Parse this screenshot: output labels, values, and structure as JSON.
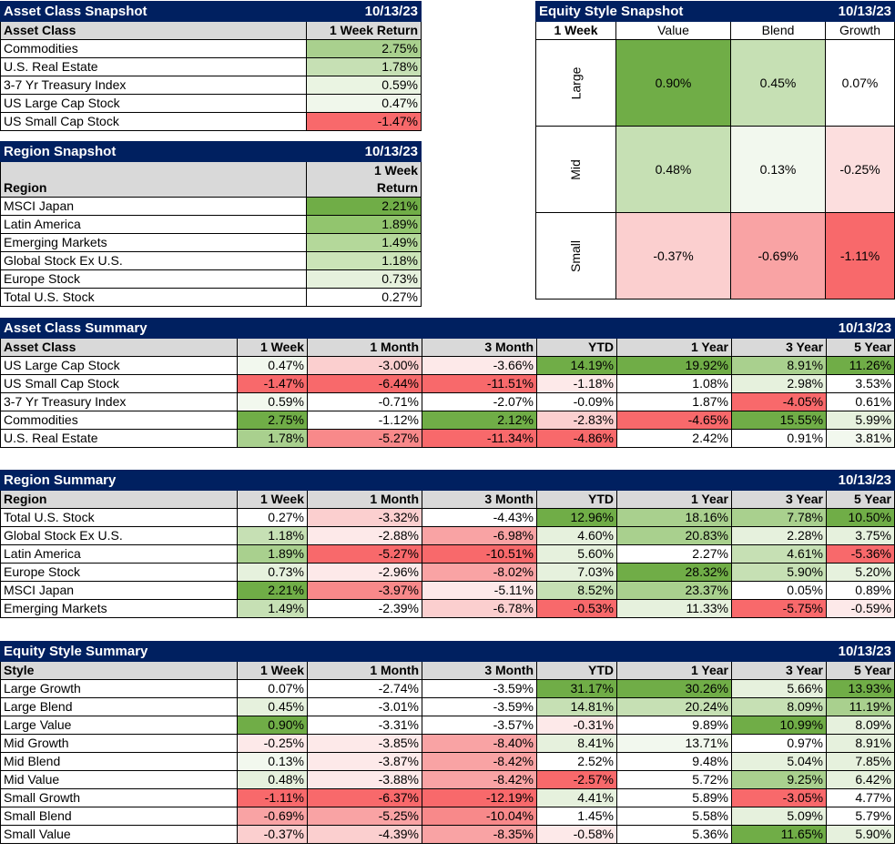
{
  "colors": {
    "header_bg": "#002060",
    "subheader_bg": "#d9d9d9"
  },
  "asset_class_snapshot": {
    "title": "Asset Class Snapshot",
    "date": "10/13/23",
    "col_label": "Asset Class",
    "col_return": "1 Week Return",
    "rows": [
      {
        "name": "Commodities",
        "value": "2.75%",
        "color": "#a9d08e"
      },
      {
        "name": "U.S. Real Estate",
        "value": "1.78%",
        "color": "#c6e0b4"
      },
      {
        "name": "3-7 Yr Treasury Index",
        "value": "0.59%",
        "color": "#eaf4e2"
      },
      {
        "name": "US Large Cap Stock",
        "value": "0.47%",
        "color": "#f0f7eb"
      },
      {
        "name": "US Small Cap Stock",
        "value": "-1.47%",
        "color": "#f8696b"
      }
    ]
  },
  "region_snapshot": {
    "title": "Region Snapshot",
    "date": "10/13/23",
    "col_label": "Region",
    "col_return_line1": "1 Week",
    "col_return_line2": "Return",
    "rows": [
      {
        "name": "MSCI Japan",
        "value": "2.21%",
        "color": "#70ad47"
      },
      {
        "name": "Latin America",
        "value": "1.89%",
        "color": "#92c56e"
      },
      {
        "name": "Emerging Markets",
        "value": "1.49%",
        "color": "#b4d89a"
      },
      {
        "name": "Global Stock Ex U.S.",
        "value": "1.18%",
        "color": "#cbe4b8"
      },
      {
        "name": "Europe Stock",
        "value": "0.73%",
        "color": "#e6f1dd"
      },
      {
        "name": "Total U.S. Stock",
        "value": "0.27%",
        "color": "#ffffff"
      }
    ]
  },
  "equity_style_snapshot": {
    "title": "Equity Style Snapshot",
    "date": "10/13/23",
    "corner": "1 Week",
    "cols": [
      "Value",
      "Blend",
      "Growth"
    ],
    "rows": [
      {
        "label": "Large",
        "cells": [
          {
            "value": "0.90%",
            "color": "#70ad47"
          },
          {
            "value": "0.45%",
            "color": "#c6e0b4"
          },
          {
            "value": "0.07%",
            "color": "#ffffff"
          }
        ]
      },
      {
        "label": "Mid",
        "cells": [
          {
            "value": "0.48%",
            "color": "#c6e0b4"
          },
          {
            "value": "0.13%",
            "color": "#f2f8ee"
          },
          {
            "value": "-0.25%",
            "color": "#fcdede"
          }
        ]
      },
      {
        "label": "Small",
        "cells": [
          {
            "value": "-0.37%",
            "color": "#fbcfcf"
          },
          {
            "value": "-0.69%",
            "color": "#f9a3a4"
          },
          {
            "value": "-1.11%",
            "color": "#f8696b"
          }
        ]
      }
    ]
  },
  "asset_class_summary": {
    "title": "Asset Class Summary",
    "date": "10/13/23",
    "headers": [
      "Asset Class",
      "1 Week",
      "1 Month",
      "3 Month",
      "YTD",
      "1 Year",
      "3 Year",
      "5 Year"
    ],
    "rows": [
      {
        "name": "US Large Cap Stock",
        "cells": [
          {
            "v": "0.47%",
            "c": "#f2f8ee"
          },
          {
            "v": "-3.00%",
            "c": "#fbcfcf"
          },
          {
            "v": "-3.66%",
            "c": "#fde9e9"
          },
          {
            "v": "14.19%",
            "c": "#70ad47"
          },
          {
            "v": "19.92%",
            "c": "#70ad47"
          },
          {
            "v": "8.91%",
            "c": "#a9d08e"
          },
          {
            "v": "11.26%",
            "c": "#70ad47"
          }
        ]
      },
      {
        "name": "US Small Cap Stock",
        "cells": [
          {
            "v": "-1.47%",
            "c": "#f8696b"
          },
          {
            "v": "-6.44%",
            "c": "#f8696b"
          },
          {
            "v": "-11.51%",
            "c": "#f8696b"
          },
          {
            "v": "-1.18%",
            "c": "#fde9e9"
          },
          {
            "v": "1.08%",
            "c": "#ffffff"
          },
          {
            "v": "2.98%",
            "c": "#e6f1dd"
          },
          {
            "v": "3.53%",
            "c": "#ffffff"
          }
        ]
      },
      {
        "name": "3-7 Yr Treasury Index",
        "cells": [
          {
            "v": "0.59%",
            "c": "#f2f8ee"
          },
          {
            "v": "-0.71%",
            "c": "#ffffff"
          },
          {
            "v": "-2.07%",
            "c": "#ffffff"
          },
          {
            "v": "-0.09%",
            "c": "#ffffff"
          },
          {
            "v": "1.87%",
            "c": "#ffffff"
          },
          {
            "v": "-4.05%",
            "c": "#f8696b"
          },
          {
            "v": "0.61%",
            "c": "#ffffff"
          }
        ]
      },
      {
        "name": "Commodities",
        "cells": [
          {
            "v": "2.75%",
            "c": "#70ad47"
          },
          {
            "v": "-1.12%",
            "c": "#ffffff"
          },
          {
            "v": "2.12%",
            "c": "#70ad47"
          },
          {
            "v": "-2.83%",
            "c": "#fbcfcf"
          },
          {
            "v": "-4.65%",
            "c": "#f8696b"
          },
          {
            "v": "15.55%",
            "c": "#70ad47"
          },
          {
            "v": "5.99%",
            "c": "#e6f1dd"
          }
        ]
      },
      {
        "name": "U.S. Real Estate",
        "cells": [
          {
            "v": "1.78%",
            "c": "#a9d08e"
          },
          {
            "v": "-5.27%",
            "c": "#f8898a"
          },
          {
            "v": "-11.34%",
            "c": "#f8696b"
          },
          {
            "v": "-4.86%",
            "c": "#f8696b"
          },
          {
            "v": "2.42%",
            "c": "#ffffff"
          },
          {
            "v": "0.91%",
            "c": "#ffffff"
          },
          {
            "v": "3.81%",
            "c": "#f2f8ee"
          }
        ]
      }
    ]
  },
  "region_summary": {
    "title": "Region Summary",
    "date": "10/13/23",
    "headers": [
      "Region",
      "1 Week",
      "1 Month",
      "3 Month",
      "YTD",
      "1 Year",
      "3 Year",
      "5 Year"
    ],
    "rows": [
      {
        "name": "Total U.S. Stock",
        "cells": [
          {
            "v": "0.27%",
            "c": "#ffffff"
          },
          {
            "v": "-3.32%",
            "c": "#fbcfcf"
          },
          {
            "v": "-4.43%",
            "c": "#ffffff"
          },
          {
            "v": "12.96%",
            "c": "#70ad47"
          },
          {
            "v": "18.16%",
            "c": "#a9d08e"
          },
          {
            "v": "7.78%",
            "c": "#a9d08e"
          },
          {
            "v": "10.50%",
            "c": "#70ad47"
          }
        ]
      },
      {
        "name": "Global Stock Ex U.S.",
        "cells": [
          {
            "v": "1.18%",
            "c": "#c6e0b4"
          },
          {
            "v": "-2.88%",
            "c": "#fde9e9"
          },
          {
            "v": "-6.98%",
            "c": "#f9a3a4"
          },
          {
            "v": "4.60%",
            "c": "#e6f1dd"
          },
          {
            "v": "20.83%",
            "c": "#a9d08e"
          },
          {
            "v": "2.28%",
            "c": "#e6f1dd"
          },
          {
            "v": "3.75%",
            "c": "#e6f1dd"
          }
        ]
      },
      {
        "name": "Latin America",
        "cells": [
          {
            "v": "1.89%",
            "c": "#a9d08e"
          },
          {
            "v": "-5.27%",
            "c": "#f8696b"
          },
          {
            "v": "-10.51%",
            "c": "#f8696b"
          },
          {
            "v": "5.60%",
            "c": "#e6f1dd"
          },
          {
            "v": "2.27%",
            "c": "#ffffff"
          },
          {
            "v": "4.61%",
            "c": "#c6e0b4"
          },
          {
            "v": "-5.36%",
            "c": "#f8696b"
          }
        ]
      },
      {
        "name": "Europe Stock",
        "cells": [
          {
            "v": "0.73%",
            "c": "#e6f1dd"
          },
          {
            "v": "-2.96%",
            "c": "#fde9e9"
          },
          {
            "v": "-8.02%",
            "c": "#f9a3a4"
          },
          {
            "v": "7.03%",
            "c": "#e6f1dd"
          },
          {
            "v": "28.32%",
            "c": "#70ad47"
          },
          {
            "v": "5.90%",
            "c": "#c6e0b4"
          },
          {
            "v": "5.20%",
            "c": "#e6f1dd"
          }
        ]
      },
      {
        "name": "MSCI Japan",
        "cells": [
          {
            "v": "2.21%",
            "c": "#70ad47"
          },
          {
            "v": "-3.97%",
            "c": "#f8898a"
          },
          {
            "v": "-5.11%",
            "c": "#fde9e9"
          },
          {
            "v": "8.52%",
            "c": "#c6e0b4"
          },
          {
            "v": "23.37%",
            "c": "#a9d08e"
          },
          {
            "v": "0.05%",
            "c": "#ffffff"
          },
          {
            "v": "0.89%",
            "c": "#ffffff"
          }
        ]
      },
      {
        "name": "Emerging Markets",
        "cells": [
          {
            "v": "1.49%",
            "c": "#c6e0b4"
          },
          {
            "v": "-2.39%",
            "c": "#ffffff"
          },
          {
            "v": "-6.78%",
            "c": "#fbcfcf"
          },
          {
            "v": "-0.53%",
            "c": "#f8696b"
          },
          {
            "v": "11.33%",
            "c": "#e6f1dd"
          },
          {
            "v": "-5.75%",
            "c": "#f8696b"
          },
          {
            "v": "-0.59%",
            "c": "#fde9e9"
          }
        ]
      }
    ]
  },
  "equity_style_summary": {
    "title": "Equity Style Summary",
    "date": "10/13/23",
    "headers": [
      "Style",
      "1 Week",
      "1 Month",
      "3 Month",
      "YTD",
      "1 Year",
      "3 Year",
      "5 Year"
    ],
    "rows": [
      {
        "name": "Large Growth",
        "cells": [
          {
            "v": "0.07%",
            "c": "#ffffff"
          },
          {
            "v": "-2.74%",
            "c": "#ffffff"
          },
          {
            "v": "-3.59%",
            "c": "#ffffff"
          },
          {
            "v": "31.17%",
            "c": "#70ad47"
          },
          {
            "v": "30.26%",
            "c": "#70ad47"
          },
          {
            "v": "5.66%",
            "c": "#e6f1dd"
          },
          {
            "v": "13.93%",
            "c": "#70ad47"
          }
        ]
      },
      {
        "name": "Large Blend",
        "cells": [
          {
            "v": "0.45%",
            "c": "#e6f1dd"
          },
          {
            "v": "-3.01%",
            "c": "#ffffff"
          },
          {
            "v": "-3.59%",
            "c": "#ffffff"
          },
          {
            "v": "14.81%",
            "c": "#c6e0b4"
          },
          {
            "v": "20.24%",
            "c": "#c6e0b4"
          },
          {
            "v": "8.09%",
            "c": "#c6e0b4"
          },
          {
            "v": "11.19%",
            "c": "#a9d08e"
          }
        ]
      },
      {
        "name": "Large Value",
        "cells": [
          {
            "v": "0.90%",
            "c": "#70ad47"
          },
          {
            "v": "-3.31%",
            "c": "#ffffff"
          },
          {
            "v": "-3.57%",
            "c": "#ffffff"
          },
          {
            "v": "-0.31%",
            "c": "#fde9e9"
          },
          {
            "v": "9.89%",
            "c": "#ffffff"
          },
          {
            "v": "10.99%",
            "c": "#70ad47"
          },
          {
            "v": "8.09%",
            "c": "#e6f1dd"
          }
        ]
      },
      {
        "name": "Mid Growth",
        "cells": [
          {
            "v": "-0.25%",
            "c": "#fde9e9"
          },
          {
            "v": "-3.85%",
            "c": "#fde9e9"
          },
          {
            "v": "-8.40%",
            "c": "#f9a3a4"
          },
          {
            "v": "8.41%",
            "c": "#e6f1dd"
          },
          {
            "v": "13.71%",
            "c": "#f2f8ee"
          },
          {
            "v": "0.97%",
            "c": "#ffffff"
          },
          {
            "v": "8.91%",
            "c": "#e6f1dd"
          }
        ]
      },
      {
        "name": "Mid Blend",
        "cells": [
          {
            "v": "0.13%",
            "c": "#f2f8ee"
          },
          {
            "v": "-3.87%",
            "c": "#fde9e9"
          },
          {
            "v": "-8.42%",
            "c": "#f9a3a4"
          },
          {
            "v": "2.52%",
            "c": "#ffffff"
          },
          {
            "v": "9.48%",
            "c": "#ffffff"
          },
          {
            "v": "5.04%",
            "c": "#e6f1dd"
          },
          {
            "v": "7.85%",
            "c": "#e6f1dd"
          }
        ]
      },
      {
        "name": "Mid Value",
        "cells": [
          {
            "v": "0.48%",
            "c": "#e6f1dd"
          },
          {
            "v": "-3.88%",
            "c": "#fde9e9"
          },
          {
            "v": "-8.42%",
            "c": "#f9a3a4"
          },
          {
            "v": "-2.57%",
            "c": "#f8696b"
          },
          {
            "v": "5.72%",
            "c": "#ffffff"
          },
          {
            "v": "9.25%",
            "c": "#a9d08e"
          },
          {
            "v": "6.42%",
            "c": "#e6f1dd"
          }
        ]
      },
      {
        "name": "Small Growth",
        "cells": [
          {
            "v": "-1.11%",
            "c": "#f8696b"
          },
          {
            "v": "-6.37%",
            "c": "#f8696b"
          },
          {
            "v": "-12.19%",
            "c": "#f8696b"
          },
          {
            "v": "4.41%",
            "c": "#e6f1dd"
          },
          {
            "v": "5.89%",
            "c": "#ffffff"
          },
          {
            "v": "-3.05%",
            "c": "#f8696b"
          },
          {
            "v": "4.77%",
            "c": "#ffffff"
          }
        ]
      },
      {
        "name": "Small Blend",
        "cells": [
          {
            "v": "-0.69%",
            "c": "#f9a3a4"
          },
          {
            "v": "-5.25%",
            "c": "#f9a3a4"
          },
          {
            "v": "-10.04%",
            "c": "#f8898a"
          },
          {
            "v": "1.45%",
            "c": "#ffffff"
          },
          {
            "v": "5.58%",
            "c": "#ffffff"
          },
          {
            "v": "5.09%",
            "c": "#e6f1dd"
          },
          {
            "v": "5.79%",
            "c": "#ffffff"
          }
        ]
      },
      {
        "name": "Small Value",
        "cells": [
          {
            "v": "-0.37%",
            "c": "#fbcfcf"
          },
          {
            "v": "-4.39%",
            "c": "#fbcfcf"
          },
          {
            "v": "-8.35%",
            "c": "#f9a3a4"
          },
          {
            "v": "-0.58%",
            "c": "#fde9e9"
          },
          {
            "v": "5.36%",
            "c": "#ffffff"
          },
          {
            "v": "11.65%",
            "c": "#70ad47"
          },
          {
            "v": "5.90%",
            "c": "#e6f1dd"
          }
        ]
      }
    ]
  }
}
